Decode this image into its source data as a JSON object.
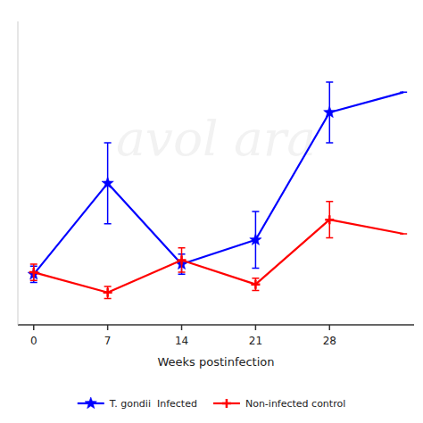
{
  "chart_data": {
    "type": "line",
    "x": [
      0,
      7,
      14,
      21,
      28,
      35
    ],
    "xlabel": "Weeks postinfection",
    "xlim": [
      -1.5,
      36
    ],
    "xticks": [
      0,
      7,
      14,
      21,
      28
    ],
    "ylim": [
      0,
      15
    ],
    "tick_labels": "x",
    "grid": false,
    "legend": "bottom",
    "annotations": [
      {
        "text": "avol ara"
      }
    ],
    "series": [
      {
        "name": "T. gondii  Infected",
        "color": "#0000FF",
        "marker": "star",
        "values": [
          2.5,
          7.0,
          3.0,
          4.2,
          10.5,
          11.5
        ],
        "errors": [
          0.4,
          2.0,
          0.5,
          1.4,
          1.5,
          0.0
        ]
      },
      {
        "name": "Non-infected control",
        "color": "#FF0000",
        "marker": "plus",
        "values": [
          2.6,
          1.6,
          3.2,
          2.0,
          5.2,
          4.5
        ],
        "errors": [
          0.4,
          0.3,
          0.6,
          0.3,
          0.9,
          0.0
        ]
      }
    ]
  }
}
